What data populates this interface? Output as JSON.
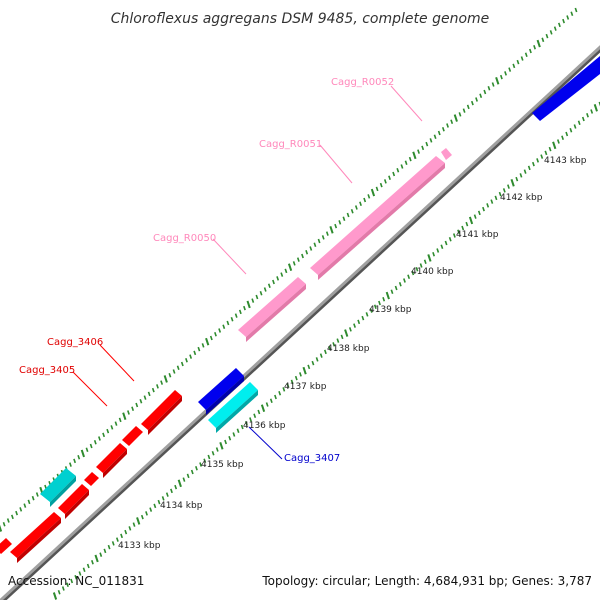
{
  "title": "Chloroflexus aggregans DSM 9485, complete genome",
  "accession": "Accession: NC_011831",
  "summary": "Topology: circular; Length: 4,684,931 bp; Genes: 3,787",
  "colors": {
    "background": "#ffffff",
    "backbone": "#8c8c8c",
    "tick": "#2e8b2e",
    "cds": "#ff0000",
    "cds_label": "#e00000",
    "rrna": "#ff99cc",
    "rrna_label": "#ff88bb",
    "reverse_cds": "#0000ee",
    "reverse_label": "#0000cc",
    "other": "#00d0d0"
  },
  "ticks": [
    "4133 kbp",
    "4134 kbp",
    "4135 kbp",
    "4136 kbp",
    "4137 kbp",
    "4138 kbp",
    "4139 kbp",
    "4140 kbp",
    "4141 kbp",
    "4142 kbp",
    "4143 kbp"
  ],
  "genes": {
    "cagg_3405": "Cagg_3405",
    "cagg_3406": "Cagg_3406",
    "cagg_r0050": "Cagg_R0050",
    "cagg_r0051": "Cagg_R0051",
    "cagg_r0052": "Cagg_R0052",
    "cagg_3407": "Cagg_3407"
  }
}
